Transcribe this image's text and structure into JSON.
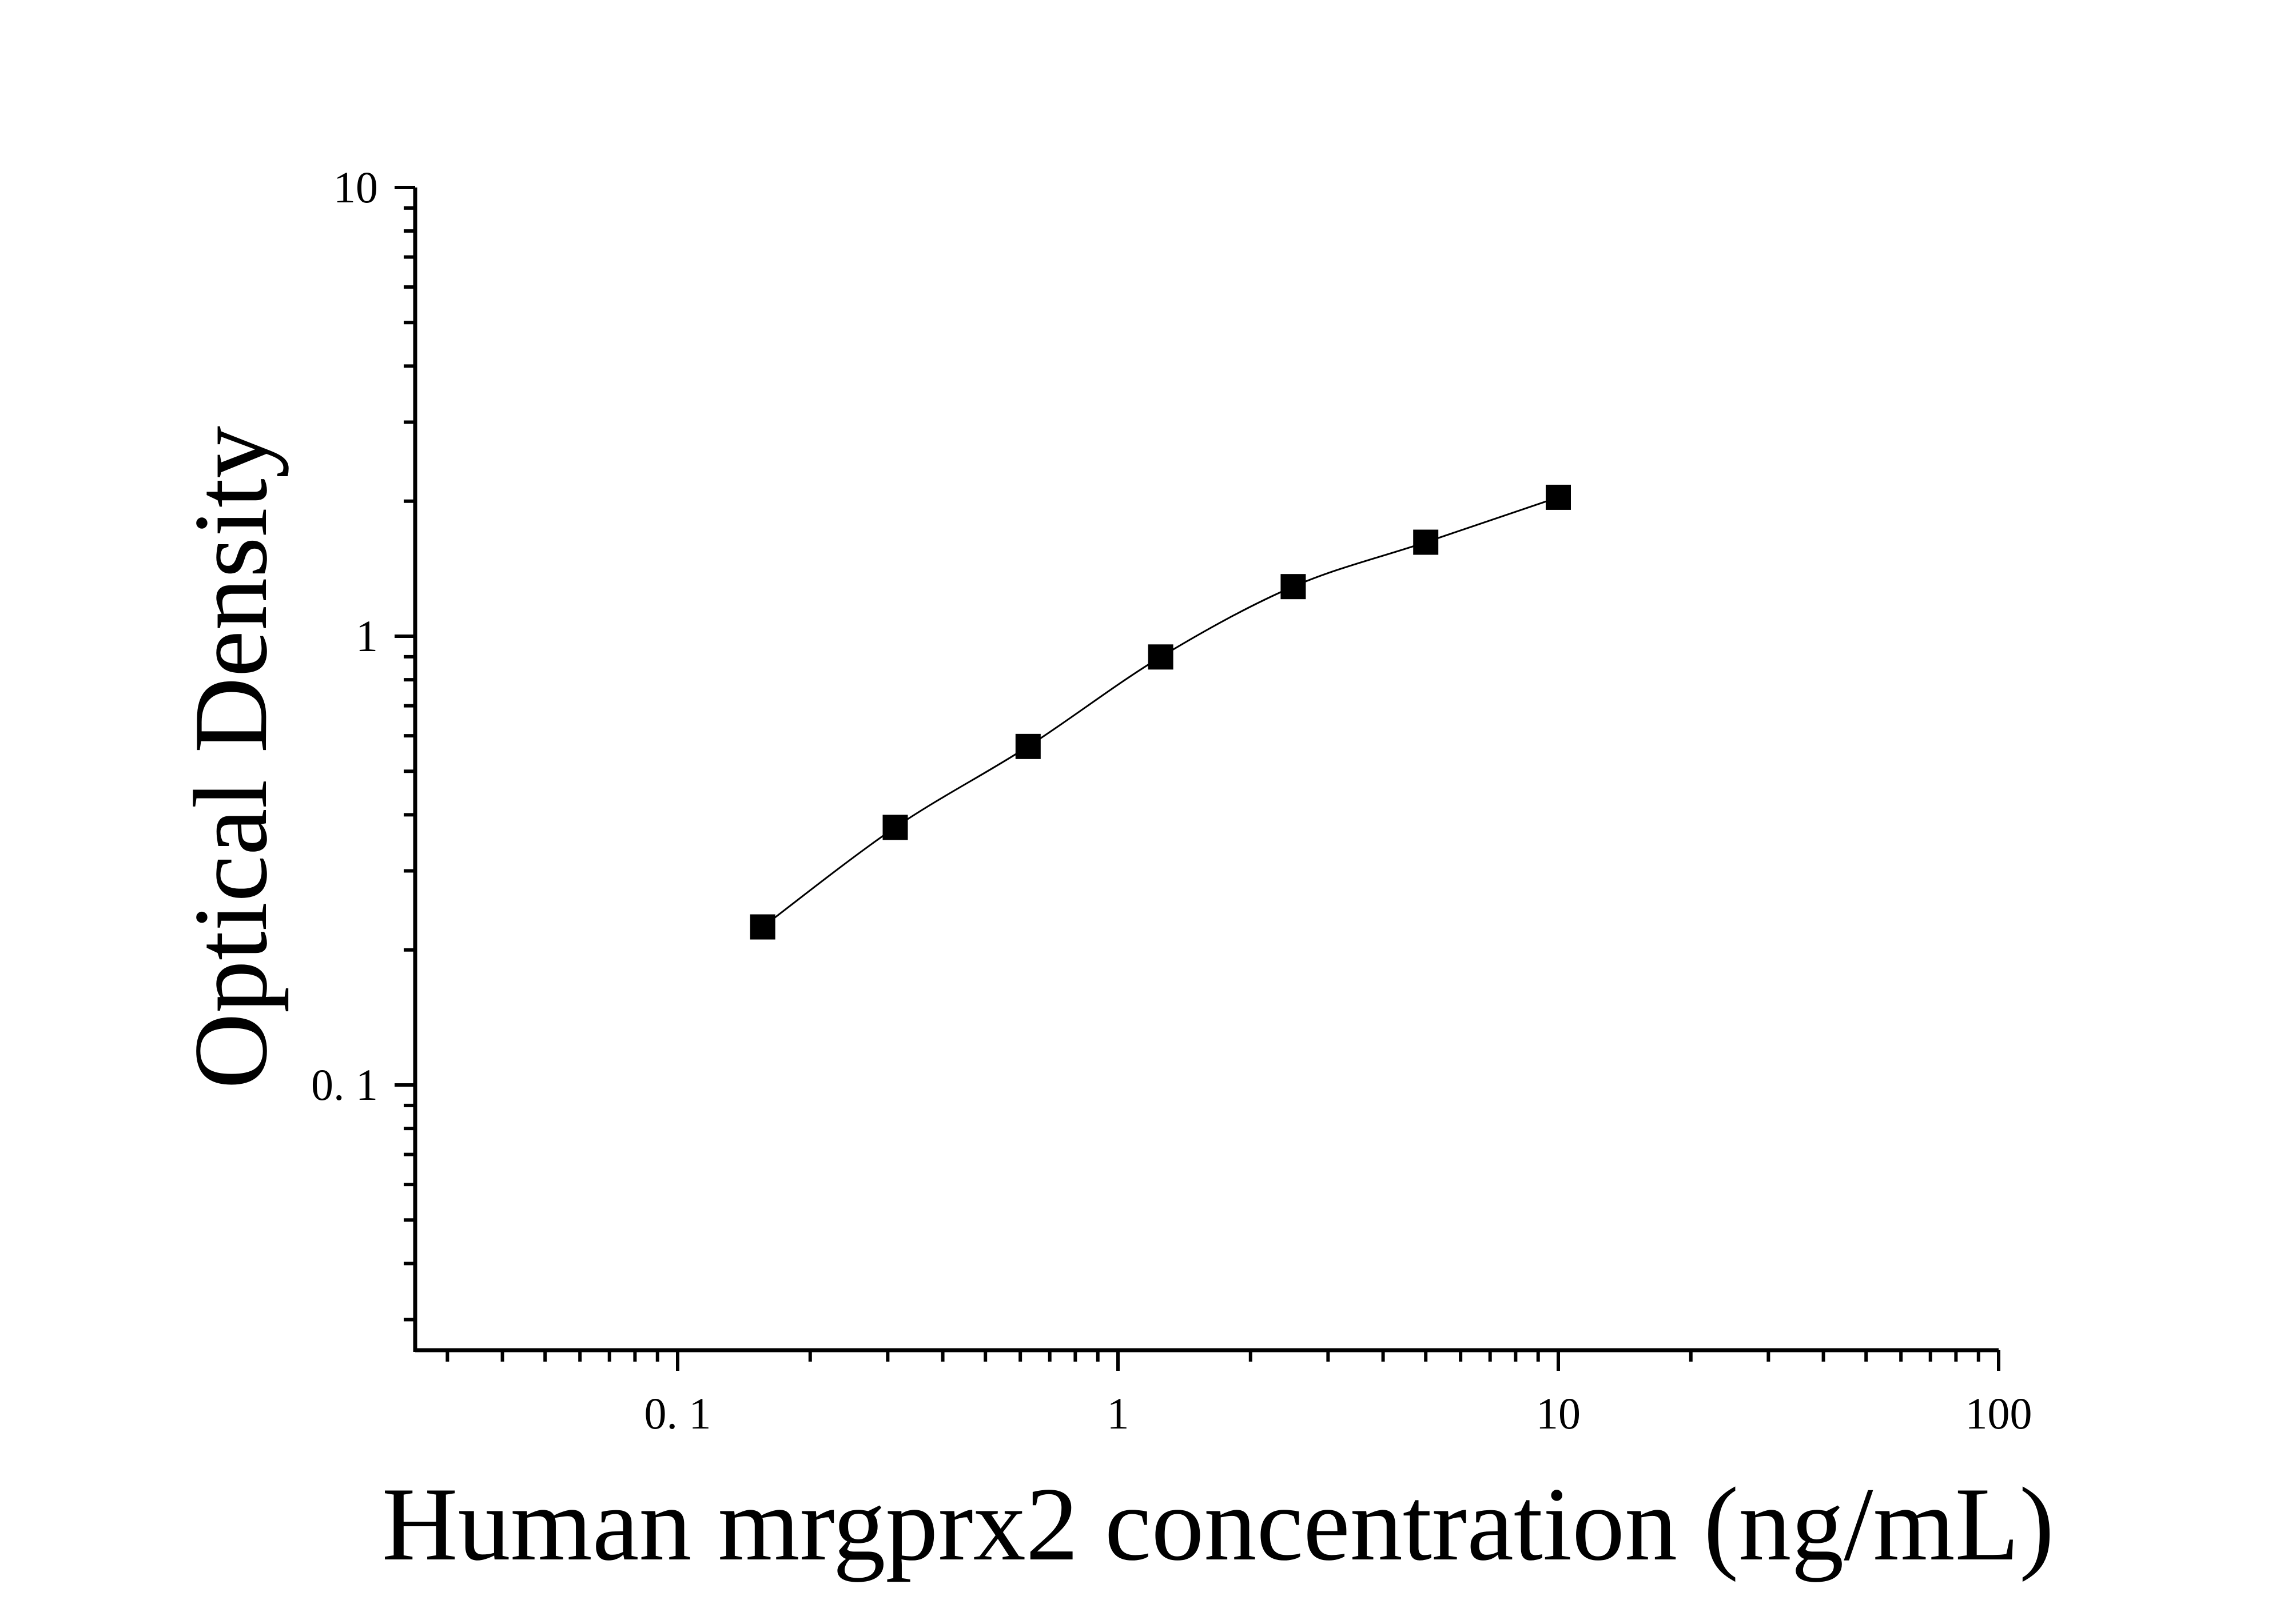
{
  "chart_data": {
    "type": "scatter",
    "title": "",
    "xlabel": "Human mrgprx2 concentration (ng/mL)",
    "ylabel": "Optical Density",
    "xscale": "log",
    "yscale": "log",
    "xlim": [
      0.025,
      100
    ],
    "ylim": [
      0.025,
      10
    ],
    "x_ticks": [
      {
        "value": 0.1,
        "label": "0. 1"
      },
      {
        "value": 1,
        "label": "1"
      },
      {
        "value": 10,
        "label": "10"
      },
      {
        "value": 100,
        "label": "100"
      }
    ],
    "y_ticks": [
      {
        "value": 0.1,
        "label": "0. 1"
      },
      {
        "value": 1,
        "label": "1"
      },
      {
        "value": 10,
        "label": "10"
      }
    ],
    "grid": false,
    "legend": "none",
    "series": [
      {
        "marker": "square",
        "color": "#000000",
        "fit_curve": true,
        "x": [
          0.156,
          0.312,
          0.625,
          1.25,
          2.5,
          5,
          10
        ],
        "y": [
          0.225,
          0.375,
          0.568,
          0.899,
          1.29,
          1.62,
          2.04
        ]
      }
    ]
  }
}
